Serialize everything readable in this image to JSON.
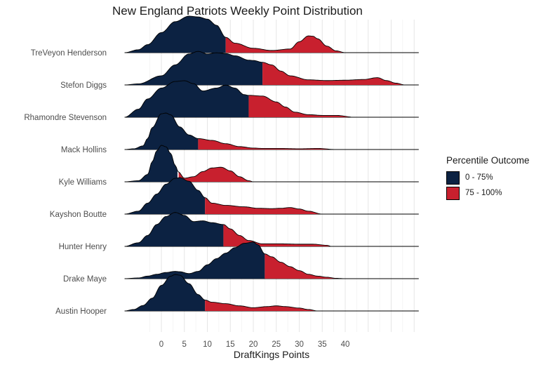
{
  "chart_data": {
    "type": "ridgeline",
    "title": "New England Patriots Weekly Point Distribution",
    "xlabel": "DraftKings Points",
    "ylabel": "",
    "xlim": [
      -8,
      56
    ],
    "xticks": [
      0,
      5,
      10,
      15,
      20,
      25,
      30,
      35,
      40
    ],
    "grid": true,
    "legend": {
      "title": "Percentile Outcome",
      "position": "right",
      "items": [
        {
          "label": "0 - 75%",
          "color": "#0c2242"
        },
        {
          "label": "75 - 100%",
          "color": "#c8202e"
        }
      ]
    },
    "colors": {
      "low": "#0c2242",
      "high": "#c8202e"
    },
    "series": [
      {
        "name": "TreVeyon Henderson",
        "cutoff": 14,
        "start": -8,
        "end": 40,
        "density_x": [
          -8,
          -5,
          -3,
          0,
          3,
          6,
          8,
          10,
          12,
          14,
          16,
          20,
          24,
          28,
          30,
          32,
          33,
          34,
          36,
          38,
          40
        ],
        "density_y": [
          0,
          0.08,
          0.22,
          0.55,
          0.85,
          1.0,
          0.98,
          0.92,
          0.75,
          0.42,
          0.26,
          0.12,
          0.06,
          0.1,
          0.3,
          0.46,
          0.45,
          0.38,
          0.18,
          0.05,
          0
        ]
      },
      {
        "name": "Stefon Diggs",
        "cutoff": 22,
        "start": -8,
        "end": 53,
        "density_x": [
          -8,
          -5,
          0,
          3,
          6,
          8,
          10,
          12,
          14,
          16,
          19,
          20,
          22,
          24,
          26,
          28,
          32,
          36,
          40,
          44,
          47,
          49,
          51,
          53
        ],
        "density_y": [
          0,
          0.03,
          0.25,
          0.55,
          0.85,
          0.92,
          0.85,
          0.88,
          0.86,
          0.8,
          0.68,
          0.67,
          0.62,
          0.55,
          0.38,
          0.25,
          0.14,
          0.12,
          0.13,
          0.15,
          0.2,
          0.12,
          0.05,
          0
        ]
      },
      {
        "name": "Rhamondre Stevenson",
        "cutoff": 19,
        "start": -8,
        "end": 42,
        "density_x": [
          -8,
          -5,
          -3,
          0,
          3,
          5,
          7,
          9,
          12,
          14,
          16,
          18,
          19,
          22,
          25,
          27,
          29,
          32,
          35,
          38,
          42
        ],
        "density_y": [
          0,
          0.22,
          0.5,
          0.8,
          0.98,
          1.0,
          0.92,
          0.72,
          0.8,
          0.88,
          0.8,
          0.62,
          0.6,
          0.58,
          0.42,
          0.28,
          0.14,
          0.07,
          0.05,
          0.05,
          0
        ]
      },
      {
        "name": "Mack Hollins",
        "cutoff": 8,
        "start": -8,
        "end": 38,
        "density_x": [
          -8,
          -6,
          -4,
          -3,
          -2,
          0,
          1,
          2,
          4,
          6,
          8,
          11,
          14,
          17,
          20,
          22,
          26,
          30,
          34,
          38
        ],
        "density_y": [
          0,
          0.02,
          0.1,
          0.3,
          0.6,
          0.98,
          1.0,
          0.95,
          0.62,
          0.4,
          0.3,
          0.25,
          0.16,
          0.08,
          0.04,
          0.03,
          0.03,
          0.02,
          0.03,
          0
        ]
      },
      {
        "name": "Kyle Williams",
        "cutoff": 3.7,
        "start": -8,
        "end": 20,
        "density_x": [
          -8,
          -5,
          -3,
          -2,
          -1,
          0,
          1,
          2,
          3,
          3.7,
          5,
          7,
          9,
          11,
          13,
          15,
          17,
          19,
          20
        ],
        "density_y": [
          0,
          0.03,
          0.2,
          0.55,
          0.85,
          1.0,
          0.96,
          0.78,
          0.45,
          0.27,
          0.1,
          0.14,
          0.28,
          0.38,
          0.4,
          0.3,
          0.14,
          0.03,
          0
        ]
      },
      {
        "name": "Kayshon Boutte",
        "cutoff": 9.5,
        "start": -8,
        "end": 35,
        "density_x": [
          -8,
          -5,
          -3,
          -1,
          1,
          3,
          4,
          6,
          8,
          9.5,
          11,
          14,
          18,
          21,
          24,
          26,
          28,
          30,
          32,
          35
        ],
        "density_y": [
          0,
          0.08,
          0.3,
          0.55,
          0.82,
          0.98,
          1.0,
          0.9,
          0.65,
          0.45,
          0.3,
          0.24,
          0.2,
          0.16,
          0.15,
          0.16,
          0.18,
          0.14,
          0.08,
          0
        ]
      },
      {
        "name": "Hunter Henry",
        "cutoff": 13.5,
        "start": -8,
        "end": 37,
        "density_x": [
          -8,
          -5,
          -3,
          -1,
          1,
          3,
          5,
          7,
          9,
          11,
          13.5,
          15,
          17,
          19,
          22,
          26,
          30,
          33,
          36,
          37
        ],
        "density_y": [
          0,
          0.1,
          0.3,
          0.6,
          0.82,
          0.93,
          0.85,
          0.68,
          0.7,
          0.65,
          0.6,
          0.48,
          0.3,
          0.16,
          0.07,
          0.07,
          0.06,
          0.06,
          0.03,
          0
        ]
      },
      {
        "name": "Drake Maye",
        "cutoff": 22.5,
        "start": -8,
        "end": 40,
        "density_x": [
          -8,
          -5,
          -3,
          -1,
          1,
          3,
          4,
          6,
          8,
          10,
          12,
          14,
          16,
          18,
          20,
          21,
          22.5,
          24,
          26,
          28,
          30,
          32,
          34,
          36,
          38,
          40
        ],
        "density_y": [
          0,
          0.02,
          0.07,
          0.12,
          0.17,
          0.2,
          0.19,
          0.14,
          0.2,
          0.38,
          0.55,
          0.7,
          0.85,
          0.97,
          1.0,
          0.93,
          0.68,
          0.6,
          0.45,
          0.33,
          0.22,
          0.12,
          0.07,
          0.04,
          0.01,
          0
        ]
      },
      {
        "name": "Austin Hooper",
        "cutoff": 9.5,
        "start": -8,
        "end": 34,
        "density_x": [
          -8,
          -6,
          -4,
          -2,
          0,
          2,
          3,
          4,
          6,
          8,
          9.5,
          11,
          14,
          17,
          20,
          23,
          25,
          27,
          30,
          32,
          34
        ],
        "density_y": [
          0,
          0.04,
          0.15,
          0.35,
          0.7,
          0.95,
          1.0,
          0.98,
          0.75,
          0.45,
          0.3,
          0.24,
          0.2,
          0.14,
          0.09,
          0.12,
          0.14,
          0.12,
          0.08,
          0.04,
          0
        ]
      }
    ]
  }
}
